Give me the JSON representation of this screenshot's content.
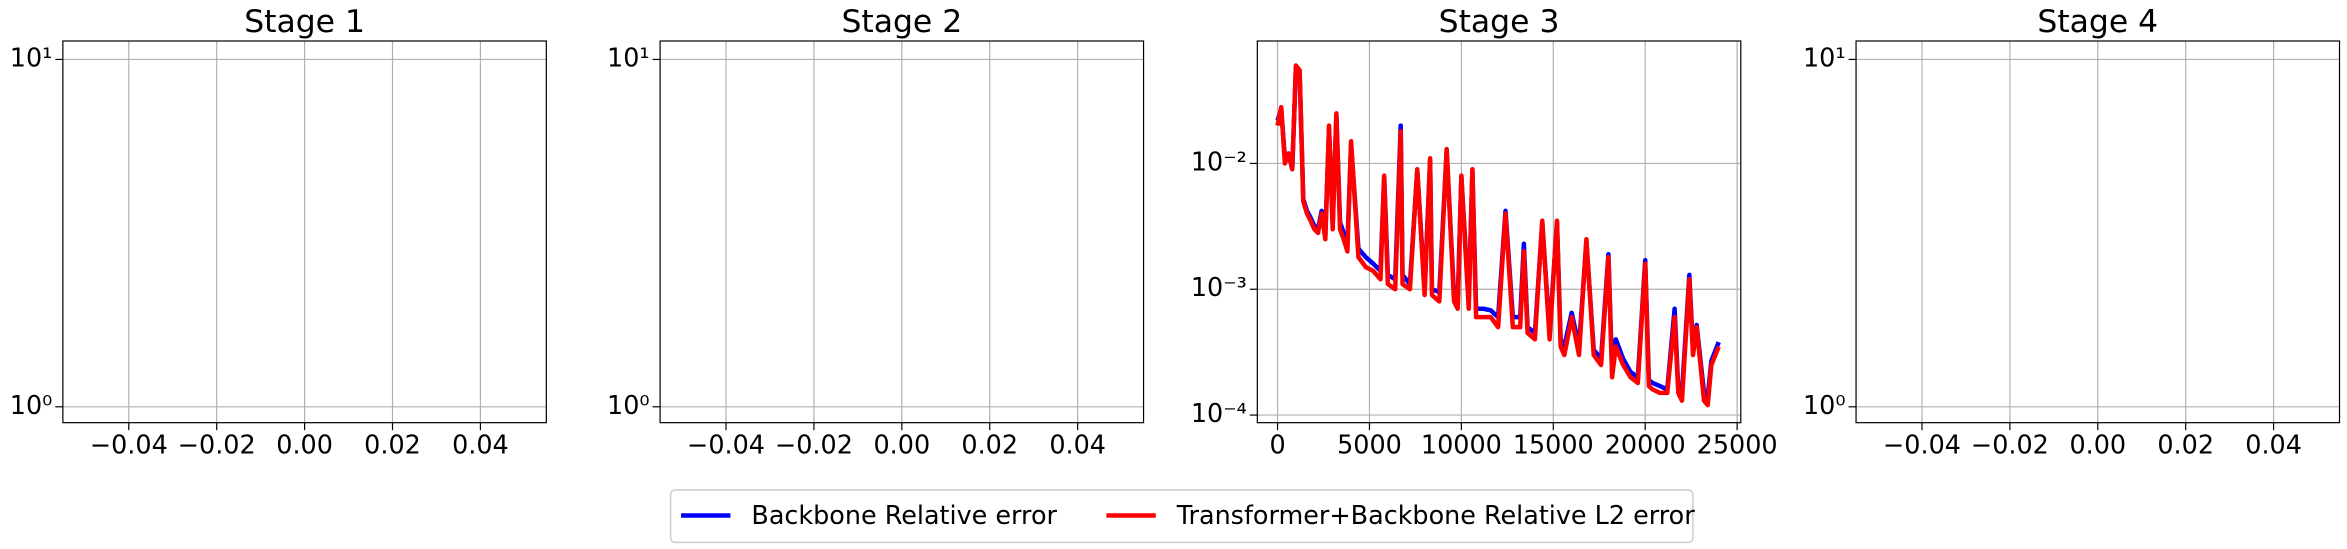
{
  "chart_data": [
    {
      "type": "line",
      "title": "Stage 1",
      "yscale": "log",
      "grid": true,
      "series": [],
      "xlim": [
        -0.055,
        0.055
      ],
      "xticks": [
        {
          "value": -0.04,
          "label": "−0.04"
        },
        {
          "value": -0.02,
          "label": "−0.02"
        },
        {
          "value": 0,
          "label": "0.00"
        },
        0.02,
        0.04
      ],
      "ylim": [
        0.9,
        11.3
      ],
      "yticks": [
        {
          "value": 1,
          "label": "10⁰"
        },
        {
          "value": 10,
          "label": "10¹"
        }
      ]
    },
    {
      "type": "line",
      "title": "Stage 2",
      "yscale": "log",
      "grid": true,
      "series": [],
      "xlim": [
        -0.055,
        0.055
      ],
      "xticks": [
        {
          "value": -0.04,
          "label": "−0.04"
        },
        {
          "value": -0.02,
          "label": "−0.02"
        },
        {
          "value": 0,
          "label": "0.00"
        },
        0.02,
        0.04
      ],
      "ylim": [
        0.9,
        11.3
      ],
      "yticks": [
        {
          "value": 1,
          "label": "10⁰"
        },
        {
          "value": 10,
          "label": "10¹"
        }
      ]
    },
    {
      "type": "line",
      "title": "Stage 3",
      "yscale": "log",
      "grid": true,
      "xlim": [
        -1100,
        25200
      ],
      "xticks": [
        0,
        5000,
        10000,
        15000,
        20000,
        25000
      ],
      "ylim": [
        8.7e-05,
        0.094
      ],
      "yticks": [
        {
          "value": 0.0001,
          "label": "10⁻⁴"
        },
        {
          "value": 0.001,
          "label": "10⁻³"
        },
        {
          "value": 0.01,
          "label": "10⁻²"
        }
      ],
      "x": [
        0,
        200,
        400,
        600,
        800,
        1000,
        1200,
        1400,
        1600,
        1800,
        2000,
        2200,
        2400,
        2600,
        2800,
        3000,
        3200,
        3400,
        3600,
        3800,
        4000,
        4400,
        4800,
        5200,
        5600,
        5800,
        6000,
        6400,
        6700,
        6800,
        7200,
        7600,
        8000,
        8300,
        8400,
        8800,
        9200,
        9600,
        9800,
        10000,
        10400,
        10600,
        10800,
        11200,
        11600,
        12000,
        12400,
        12800,
        13200,
        13400,
        13600,
        14000,
        14400,
        14800,
        15200,
        15400,
        15600,
        16000,
        16400,
        16800,
        17200,
        17600,
        18000,
        18200,
        18400,
        18800,
        19200,
        19600,
        20000,
        20200,
        20400,
        20800,
        21200,
        21600,
        21800,
        22000,
        22400,
        22600,
        22800,
        23200,
        23400,
        23600,
        24000
      ],
      "series": [
        {
          "name": "Backbone Relative error",
          "color": "#0000ff",
          "values": [
            0.022,
            0.027,
            0.011,
            0.012,
            0.009,
            0.058,
            0.054,
            0.0052,
            0.0042,
            0.0037,
            0.0032,
            0.003,
            0.0042,
            0.0027,
            0.019,
            0.0033,
            0.024,
            0.0034,
            0.0028,
            0.0023,
            0.014,
            0.0021,
            0.0018,
            0.0016,
            0.0014,
            0.0079,
            0.0013,
            0.0012,
            0.02,
            0.0013,
            0.0011,
            0.0088,
            0.001,
            0.0105,
            0.001,
            0.00095,
            0.0125,
            0.0009,
            0.0008,
            0.0078,
            0.0008,
            0.0088,
            0.0007,
            0.0007,
            0.00068,
            0.0006,
            0.0042,
            0.0006,
            0.0006,
            0.0023,
            0.0005,
            0.00045,
            0.0034,
            0.00045,
            0.0034,
            0.0004,
            0.00035,
            0.00065,
            0.00035,
            0.0024,
            0.00033,
            0.00028,
            0.0019,
            0.00022,
            0.0004,
            0.00028,
            0.00022,
            0.0002,
            0.0017,
            0.00019,
            0.00018,
            0.00017,
            0.00016,
            0.0007,
            0.00016,
            0.00015,
            0.0013,
            0.00033,
            0.00052,
            0.00015,
            0.00014,
            0.00027,
            0.00038
          ]
        },
        {
          "name": "Transformer+Backbone Relative L2 error",
          "color": "#ff0000",
          "values": [
            0.02,
            0.028,
            0.01,
            0.012,
            0.009,
            0.06,
            0.055,
            0.005,
            0.004,
            0.0035,
            0.003,
            0.0028,
            0.004,
            0.0025,
            0.02,
            0.003,
            0.025,
            0.003,
            0.0025,
            0.002,
            0.015,
            0.0018,
            0.0015,
            0.0014,
            0.0012,
            0.008,
            0.0011,
            0.001,
            0.018,
            0.0011,
            0.001,
            0.009,
            0.0009,
            0.011,
            0.0009,
            0.0008,
            0.013,
            0.0008,
            0.0007,
            0.008,
            0.0007,
            0.009,
            0.0006,
            0.0006,
            0.0006,
            0.0005,
            0.004,
            0.0005,
            0.0005,
            0.002,
            0.00045,
            0.0004,
            0.0035,
            0.0004,
            0.0035,
            0.00035,
            0.0003,
            0.0006,
            0.0003,
            0.0025,
            0.0003,
            0.00025,
            0.0018,
            0.0002,
            0.00035,
            0.00025,
            0.0002,
            0.00018,
            0.0016,
            0.00017,
            0.00016,
            0.00015,
            0.00015,
            0.0006,
            0.00015,
            0.00013,
            0.0012,
            0.0003,
            0.0005,
            0.00013,
            0.00012,
            0.00025,
            0.00035
          ]
        }
      ]
    },
    {
      "type": "line",
      "title": "Stage 4",
      "yscale": "log",
      "grid": true,
      "series": [],
      "xlim": [
        -0.055,
        0.055
      ],
      "xticks": [
        {
          "value": -0.04,
          "label": "−0.04"
        },
        {
          "value": -0.02,
          "label": "−0.02"
        },
        {
          "value": 0,
          "label": "0.00"
        },
        0.02,
        0.04
      ],
      "ylim": [
        0.9,
        11.3
      ],
      "yticks": [
        {
          "value": 1,
          "label": "10⁰"
        },
        {
          "value": 10,
          "label": "10¹"
        }
      ]
    }
  ]
}
